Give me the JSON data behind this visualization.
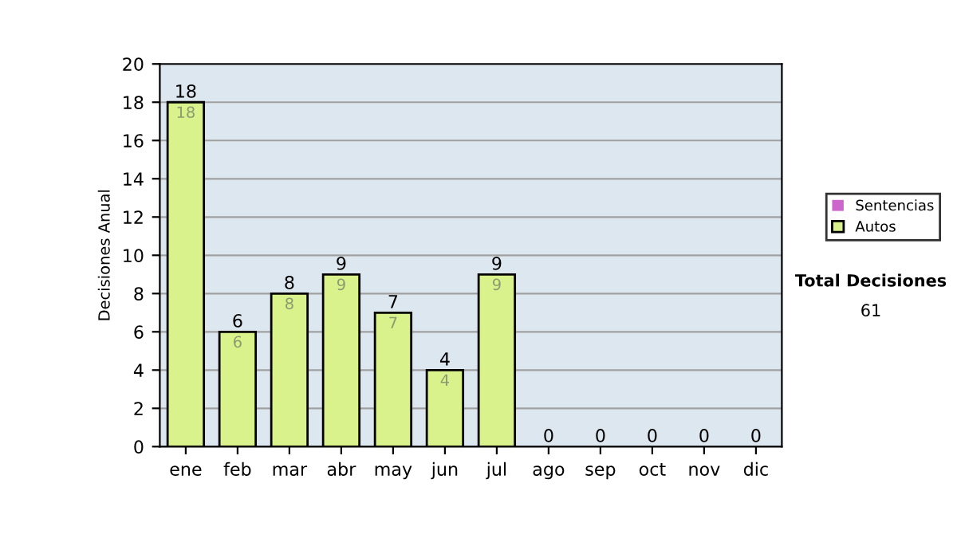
{
  "chart_data": {
    "type": "bar",
    "stacked": true,
    "ylabel": "Decisiones Anual",
    "categories": [
      "ene",
      "feb",
      "mar",
      "abr",
      "may",
      "jun",
      "jul",
      "ago",
      "sep",
      "oct",
      "nov",
      "dic"
    ],
    "series": [
      {
        "name": "Sentencias",
        "color": "#cc66cc",
        "values": [
          0,
          0,
          0,
          0,
          0,
          0,
          0,
          0,
          0,
          0,
          0,
          0
        ]
      },
      {
        "name": "Autos",
        "color": "#d9f28c",
        "values": [
          18,
          6,
          8,
          9,
          7,
          4,
          9,
          0,
          0,
          0,
          0,
          0
        ],
        "value_labels": [
          "18",
          "6",
          "8",
          "9",
          "7",
          "4",
          "9",
          null,
          null,
          null,
          null,
          null
        ]
      }
    ],
    "totals": [
      "18",
      "6",
      "8",
      "9",
      "7",
      "4",
      "9",
      "0",
      "0",
      "0",
      "0",
      "0"
    ],
    "ylim": [
      0,
      20
    ],
    "yticks": [
      0,
      2,
      4,
      6,
      8,
      10,
      12,
      14,
      16,
      18,
      20
    ],
    "grid": "y",
    "legend": "right",
    "annotations": [
      "Total Decisiones",
      "61"
    ]
  }
}
